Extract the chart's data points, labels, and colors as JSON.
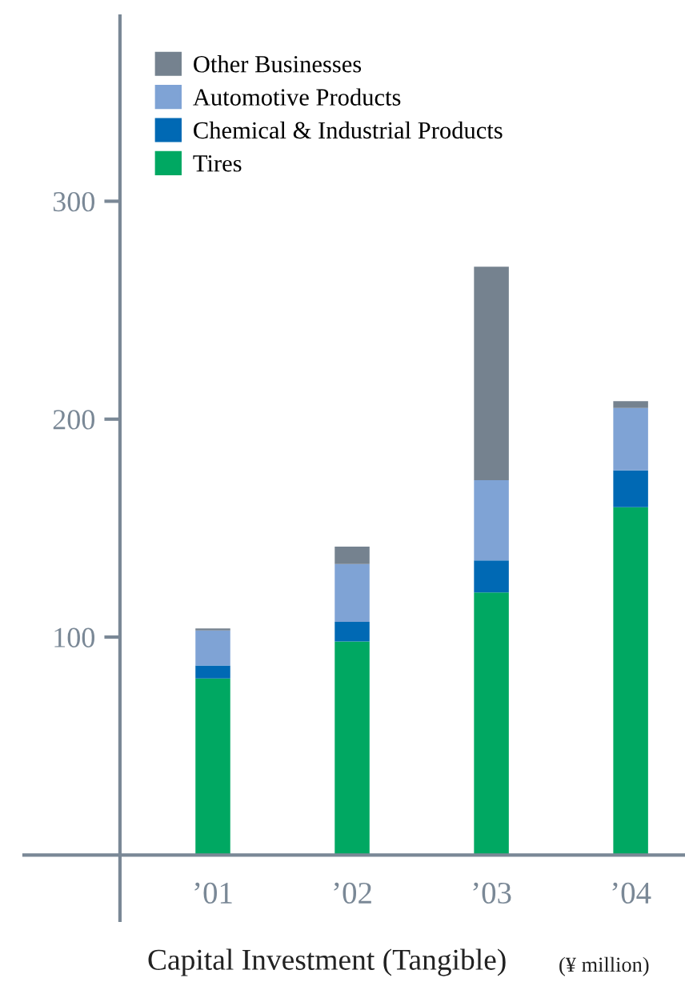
{
  "chart_data": {
    "type": "bar",
    "stacked": true,
    "title": "Capital Investment (Tangible)",
    "annotations": [
      "(¥ million)"
    ],
    "categories": [
      "’01",
      "’02",
      "’03",
      "’04"
    ],
    "series": [
      {
        "name": "Tires",
        "color": "#00a862",
        "values": [
          81,
          98,
          120.5,
          159.6
        ]
      },
      {
        "name": "Chemical & Industrial Products",
        "color": "#0069b4",
        "values": [
          6,
          9,
          14.7,
          16.9
        ]
      },
      {
        "name": "Automotive Products",
        "color": "#7fa3d5",
        "values": [
          16,
          26.5,
          36.8,
          28.6
        ]
      },
      {
        "name": "Other Businesses",
        "color": "#75828f",
        "values": [
          1,
          8,
          98,
          3.2
        ]
      }
    ],
    "ylim": [
      -30,
      385
    ],
    "yticks": [
      100,
      200,
      300
    ],
    "grid": false,
    "legend": "top left"
  }
}
